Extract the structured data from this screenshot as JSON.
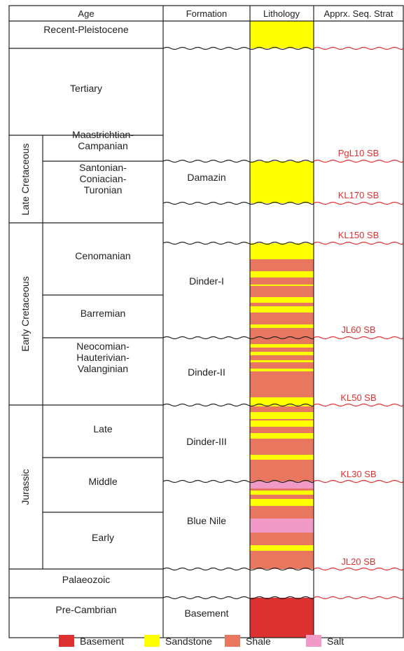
{
  "header": {
    "age": "Age",
    "formation": "Formation",
    "lithology": "Lithology",
    "seq_strat": "Apprx. Seq. Strat"
  },
  "eras": {
    "late_cretaceous": "Late Cretaceous",
    "early_cretaceous": "Early Cretaceous",
    "jurassic": "Jurassic"
  },
  "ages": [
    "Recent-Pleistocene",
    "Tertiary",
    "Maastrichtian-\nCampanian",
    "Santonian-\nConiacian-\nTuronian",
    "Cenomanian",
    "Barremian",
    "Neocomian-\nHauterivian-\nValanginian",
    "Late",
    "Middle",
    "Early",
    "Palaeozoic",
    "Pre-Cambrian"
  ],
  "formations": [
    "Damazin",
    "Dinder-I",
    "Dinder-II",
    "Dinder-III",
    "Blue Nile",
    "Basement"
  ],
  "sequence_boundaries": [
    "PgL10 SB",
    "KL170 SB",
    "KL150 SB",
    "JL60 SB",
    "KL50 SB",
    "KL30 SB",
    "JL20 SB"
  ],
  "legend": [
    {
      "label": "Basement",
      "color": "#dd3030"
    },
    {
      "label": "Sandstone",
      "color": "#ffff00"
    },
    {
      "label": "Shale",
      "color": "#e9765f"
    },
    {
      "label": "Salt",
      "color": "#f19ac8"
    }
  ],
  "colors": {
    "sandstone": "#ffff00",
    "shale": "#e9765f",
    "salt": "#f19ac8",
    "basement": "#dd3030",
    "sequence_line": "#e03030",
    "grid": "#222222"
  }
}
